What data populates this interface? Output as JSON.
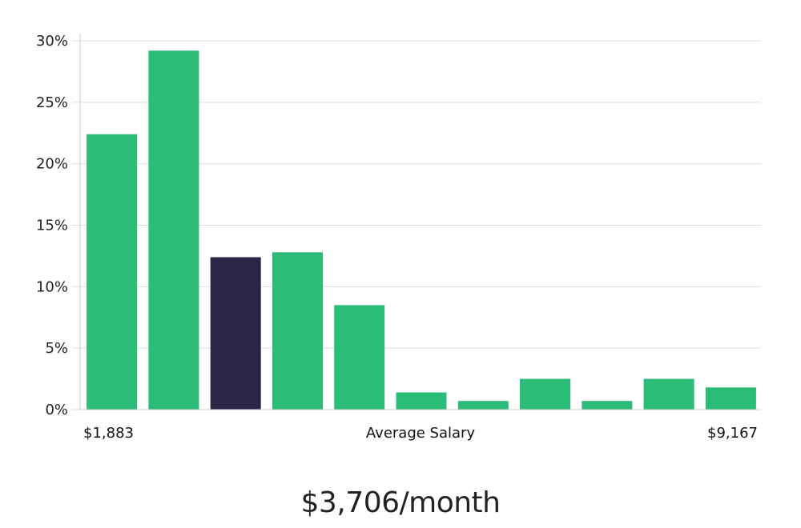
{
  "chart_data": {
    "type": "bar",
    "y_tick_labels": [
      "0%",
      "5%",
      "10%",
      "15%",
      "20%",
      "25%",
      "30%"
    ],
    "ylim": [
      0,
      30
    ],
    "values": [
      22.4,
      29.2,
      12.4,
      12.8,
      8.5,
      1.4,
      0.7,
      2.5,
      0.7,
      2.5,
      1.8
    ],
    "highlight_index": 2,
    "x_labels": {
      "left": "$1,883",
      "center": "Average Salary",
      "right": "$9,167"
    },
    "grid": true,
    "colors": {
      "bar": "#2bbd77",
      "highlight": "#2a2446",
      "grid": "#dddddd",
      "axis": "#cccccc"
    }
  },
  "summary": {
    "average_salary": "$3,706/month"
  }
}
